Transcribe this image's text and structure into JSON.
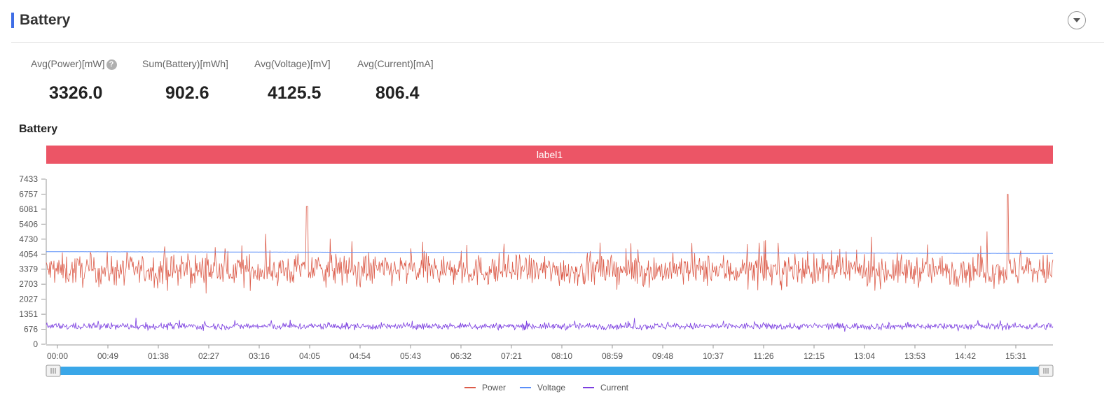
{
  "panel": {
    "title": "Battery"
  },
  "stats": [
    {
      "label": "Avg(Power)[mW]",
      "value": "3326.0",
      "has_help": true
    },
    {
      "label": "Sum(Battery)[mWh]",
      "value": "902.6",
      "has_help": false
    },
    {
      "label": "Avg(Voltage)[mV]",
      "value": "4125.5",
      "has_help": false
    },
    {
      "label": "Avg(Current)[mA]",
      "value": "806.4",
      "has_help": false
    }
  ],
  "chart_data": {
    "type": "line",
    "title": "Battery",
    "band_label": "label1",
    "y_ticks": [
      "0",
      "676",
      "1351",
      "2027",
      "2703",
      "3379",
      "4054",
      "4730",
      "5406",
      "6081",
      "6757",
      "7433"
    ],
    "ylim": [
      0,
      7433
    ],
    "x_ticks": [
      "00:00",
      "00:49",
      "01:38",
      "02:27",
      "03:16",
      "04:05",
      "04:54",
      "05:43",
      "06:32",
      "07:21",
      "08:10",
      "08:59",
      "09:48",
      "10:37",
      "11:26",
      "12:15",
      "13:04",
      "13:53",
      "14:42",
      "15:31"
    ],
    "x_range_minutes": [
      0,
      16.9
    ],
    "series": [
      {
        "name": "Power",
        "color": "#dc5c4a",
        "mean": 3326.0,
        "spread": 1400,
        "peaks": [
          {
            "t": 0.259,
            "v": 6200
          },
          {
            "t": 0.955,
            "v": 6750
          }
        ]
      },
      {
        "name": "Voltage",
        "color": "#5b8ff9",
        "mean": 4125.5,
        "spread": 30
      },
      {
        "name": "Current",
        "color": "#7b3ee0",
        "mean": 806.4,
        "spread": 300
      }
    ],
    "legend": [
      "Power",
      "Voltage",
      "Current"
    ],
    "legend_position": "bottom-center"
  }
}
